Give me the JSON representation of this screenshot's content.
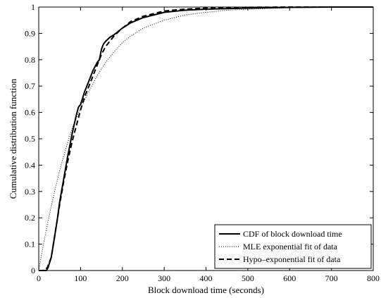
{
  "chart_data": {
    "type": "line",
    "title": "",
    "xlabel": "Block download time (seconds)",
    "ylabel": "Cumulative distribution function",
    "xlim": [
      0,
      800
    ],
    "ylim": [
      0,
      1
    ],
    "xticks": [
      0,
      100,
      200,
      300,
      400,
      500,
      600,
      700,
      800
    ],
    "yticks": [
      0,
      0.1,
      0.2,
      0.3,
      0.4,
      0.5,
      0.6,
      0.7,
      0.8,
      0.9,
      1
    ],
    "xtick_labels": [
      "0",
      "100",
      "200",
      "300",
      "400",
      "500",
      "600",
      "700",
      "800"
    ],
    "ytick_labels": [
      "0",
      "0.1",
      "0.2",
      "0.3",
      "0.4",
      "0.5",
      "0.6",
      "0.7",
      "0.8",
      "0.9",
      "1"
    ],
    "grid": false,
    "legend_position": "bottom-right",
    "series": [
      {
        "name": "CDF of block download time",
        "style": "solid",
        "color": "#000000",
        "x": [
          0,
          18,
          22,
          26,
          30,
          35,
          40,
          45,
          50,
          60,
          70,
          80,
          90,
          95,
          100,
          110,
          120,
          130,
          140,
          145,
          150,
          155,
          160,
          170,
          180,
          200,
          220,
          250,
          280,
          300,
          350,
          400,
          500,
          600,
          700,
          800
        ],
        "y": [
          0,
          0,
          0.01,
          0.03,
          0.05,
          0.1,
          0.15,
          0.2,
          0.26,
          0.35,
          0.44,
          0.52,
          0.59,
          0.62,
          0.63,
          0.68,
          0.72,
          0.76,
          0.79,
          0.8,
          0.84,
          0.86,
          0.87,
          0.885,
          0.895,
          0.92,
          0.94,
          0.96,
          0.972,
          0.98,
          0.988,
          0.992,
          0.996,
          0.999,
          1,
          1
        ]
      },
      {
        "name": "MLE exponential fit of data",
        "style": "dotted",
        "color": "#000000",
        "x": [
          0,
          10,
          20,
          30,
          40,
          50,
          60,
          70,
          80,
          90,
          100,
          120,
          140,
          160,
          180,
          200,
          220,
          250,
          300,
          350,
          400,
          450,
          500,
          600,
          700,
          800
        ],
        "y": [
          0,
          0.09,
          0.17,
          0.245,
          0.315,
          0.38,
          0.435,
          0.49,
          0.54,
          0.58,
          0.615,
          0.68,
          0.74,
          0.79,
          0.83,
          0.865,
          0.89,
          0.92,
          0.95,
          0.97,
          0.98,
          0.988,
          0.992,
          0.997,
          0.999,
          1
        ]
      },
      {
        "name": "Hypo–exponential fit of data",
        "style": "dashed",
        "color": "#000000",
        "x": [
          0,
          10,
          20,
          25,
          30,
          40,
          50,
          60,
          70,
          80,
          90,
          100,
          110,
          120,
          130,
          140,
          150,
          160,
          170,
          180,
          200,
          220,
          250,
          300,
          350,
          400,
          500,
          600,
          700,
          800
        ],
        "y": [
          0,
          0,
          0.01,
          0.03,
          0.05,
          0.15,
          0.25,
          0.34,
          0.42,
          0.49,
          0.55,
          0.61,
          0.66,
          0.7,
          0.74,
          0.78,
          0.82,
          0.85,
          0.87,
          0.89,
          0.92,
          0.945,
          0.965,
          0.985,
          0.992,
          0.996,
          0.999,
          1,
          1,
          1
        ]
      }
    ]
  }
}
